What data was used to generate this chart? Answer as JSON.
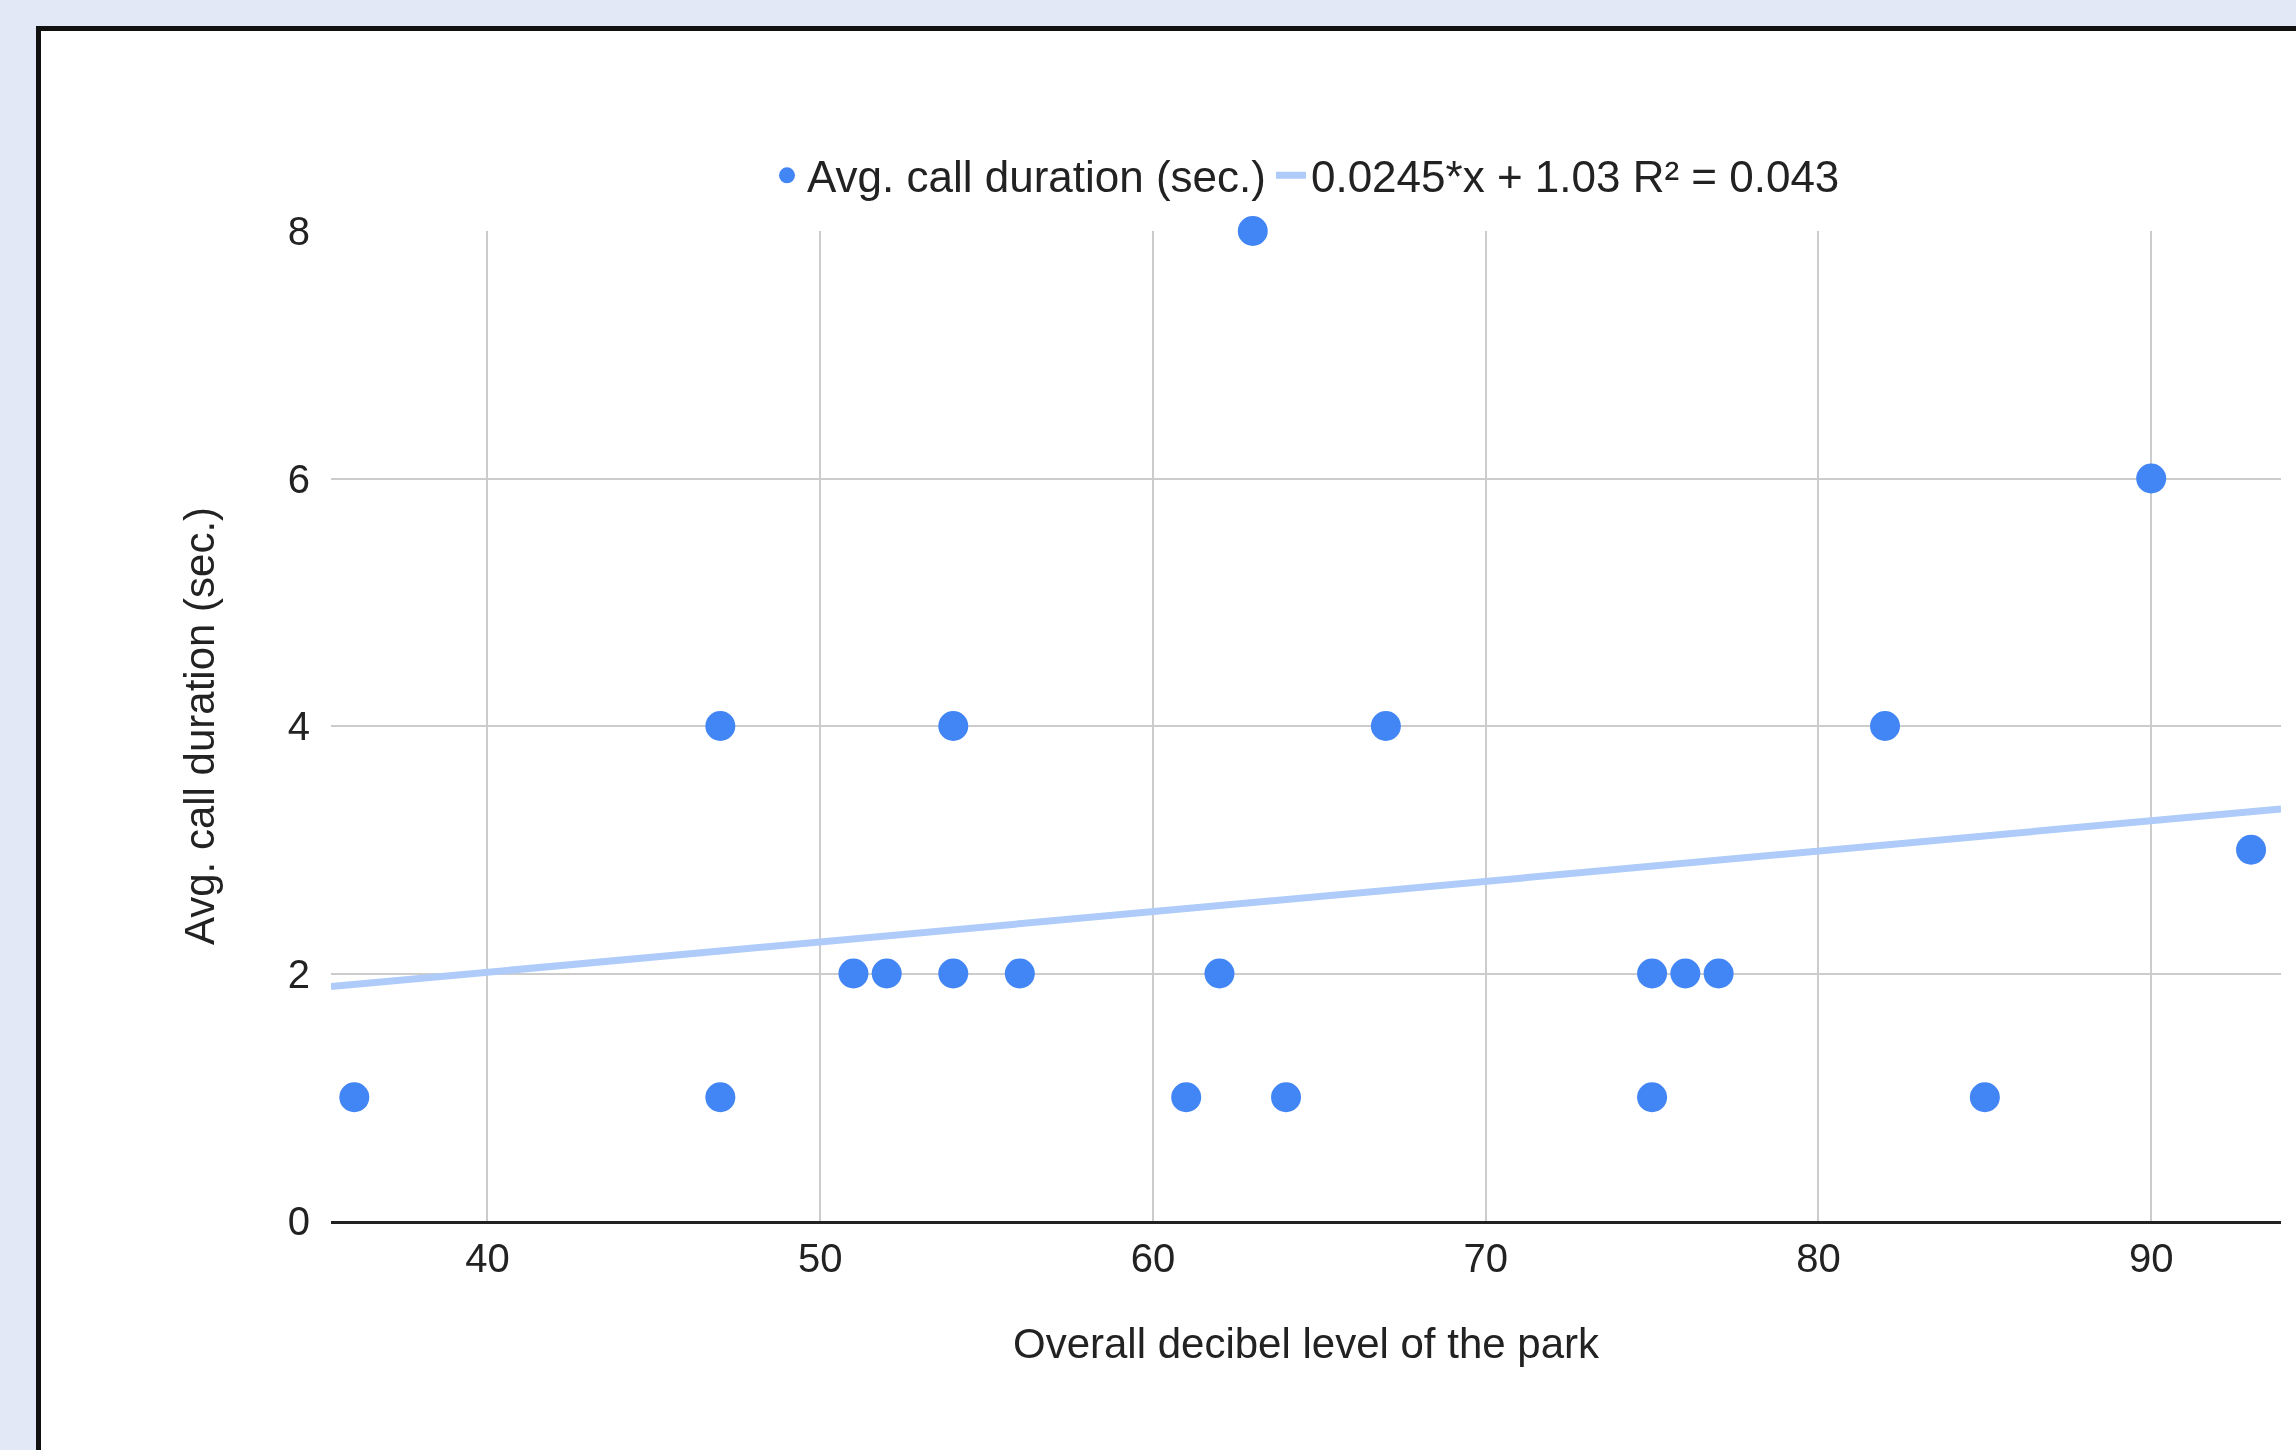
{
  "chart_data": {
    "type": "scatter",
    "xlabel": "Overall decibel level of the park",
    "ylabel": "Avg. call duration (sec.)",
    "xlim": [
      35.3,
      93.9
    ],
    "xticks": [
      40,
      50,
      60,
      70,
      80,
      90
    ],
    "ylim": [
      0,
      8
    ],
    "yticks": [
      0,
      2,
      4,
      6,
      8
    ],
    "grid": true,
    "legend": "top",
    "marker": "circle",
    "series": [
      {
        "name": "Avg. call duration (sec.)",
        "color": "#4285f4",
        "x": [
          36,
          47,
          47,
          51,
          52,
          54,
          54,
          56,
          61,
          62,
          63,
          64,
          67,
          75,
          75,
          76,
          77,
          82,
          85,
          90,
          93
        ],
        "values": [
          1,
          4,
          1,
          2,
          2,
          2,
          4,
          2,
          1,
          2,
          8,
          1,
          4,
          2,
          1,
          2,
          2,
          4,
          1,
          6,
          3
        ]
      },
      {
        "name": "0.0245*x + 1.03 R² = 0.043",
        "type": "line",
        "color": "#aecbfa",
        "marker": "none",
        "line_style": "solid",
        "x": [
          35.3,
          93.9
        ],
        "values": [
          1.895,
          3.33
        ]
      }
    ]
  }
}
